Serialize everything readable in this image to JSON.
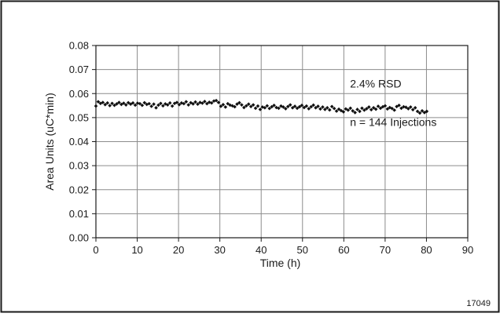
{
  "figure_id": "17049",
  "chart_data": {
    "type": "scatter",
    "title": "",
    "xlabel": "Time (h)",
    "ylabel": "Area Units (uC*min)",
    "xlim": [
      0,
      90
    ],
    "ylim": [
      0,
      0.08
    ],
    "xticks": [
      0,
      10,
      20,
      30,
      40,
      50,
      60,
      70,
      80,
      90
    ],
    "yticks": [
      0.0,
      0.01,
      0.02,
      0.03,
      0.04,
      0.05,
      0.06,
      0.07,
      0.08
    ],
    "xtick_labels": [
      "0",
      "10",
      "20",
      "30",
      "40",
      "50",
      "60",
      "70",
      "80",
      "90"
    ],
    "ytick_labels": [
      "0.00",
      "0.01",
      "0.02",
      "0.03",
      "0.04",
      "0.05",
      "0.06",
      "0.07",
      "0.08"
    ],
    "grid": true,
    "marker_color": "#111111",
    "annotations": [
      {
        "text": "2.4% RSD",
        "x": 61.5,
        "y": 0.0625
      },
      {
        "text": "n = 144 Injections",
        "x": 61.5,
        "y": 0.0465
      }
    ],
    "series": [
      {
        "x": [
          0.0,
          0.56,
          1.12,
          1.68,
          2.24,
          2.8,
          3.36,
          3.92,
          4.48,
          5.04,
          5.6,
          6.16,
          6.72,
          7.28,
          7.84,
          8.4,
          8.96,
          9.52,
          10.08,
          10.64,
          11.2,
          11.76,
          12.32,
          12.88,
          13.44,
          14.0,
          14.56,
          15.12,
          15.68,
          16.24,
          16.8,
          17.36,
          17.92,
          18.48,
          19.04,
          19.6,
          20.16,
          20.72,
          21.28,
          21.84,
          22.4,
          22.96,
          23.52,
          24.08,
          24.64,
          25.2,
          25.76,
          26.32,
          26.88,
          27.44,
          28.0,
          28.56,
          29.12,
          29.68,
          30.24,
          30.8,
          31.36,
          31.92,
          32.48,
          33.04,
          33.6,
          34.16,
          34.72,
          35.28,
          35.84,
          36.4,
          36.96,
          37.52,
          38.08,
          38.64,
          39.2,
          39.76,
          40.32,
          40.88,
          41.44,
          42.0,
          42.56,
          43.12,
          43.68,
          44.24,
          44.8,
          45.36,
          45.92,
          46.48,
          47.04,
          47.6,
          48.16,
          48.72,
          49.28,
          49.84,
          50.4,
          50.96,
          51.52,
          52.08,
          52.64,
          53.2,
          53.76,
          54.32,
          54.88,
          55.44,
          56.0,
          56.56,
          57.12,
          57.68,
          58.24,
          58.8,
          59.36,
          59.92,
          60.48,
          61.04,
          61.6,
          62.16,
          62.72,
          63.28,
          63.84,
          64.4,
          64.96,
          65.52,
          66.08,
          66.64,
          67.2,
          67.76,
          68.32,
          68.88,
          69.44,
          70.0,
          70.56,
          71.12,
          71.68,
          72.24,
          72.8,
          73.36,
          73.92,
          74.48,
          75.04,
          75.6,
          76.16,
          76.72,
          77.28,
          77.84,
          78.4,
          78.96,
          79.52,
          80.08
        ],
        "y": [
          0.0548,
          0.0566,
          0.0559,
          0.0563,
          0.0554,
          0.0561,
          0.055,
          0.0559,
          0.0551,
          0.0557,
          0.0563,
          0.0555,
          0.056,
          0.0553,
          0.0562,
          0.0556,
          0.0561,
          0.0552,
          0.056,
          0.0558,
          0.0551,
          0.0562,
          0.0555,
          0.0558,
          0.0547,
          0.0556,
          0.0541,
          0.0552,
          0.0559,
          0.0549,
          0.0557,
          0.0553,
          0.0561,
          0.0548,
          0.0559,
          0.0563,
          0.0554,
          0.0561,
          0.0558,
          0.0566,
          0.0553,
          0.0562,
          0.0557,
          0.0565,
          0.0556,
          0.0563,
          0.056,
          0.0567,
          0.0558,
          0.0564,
          0.0561,
          0.0569,
          0.0571,
          0.0563,
          0.0547,
          0.0554,
          0.0544,
          0.0558,
          0.0552,
          0.0549,
          0.0545,
          0.0556,
          0.0562,
          0.0553,
          0.0542,
          0.0549,
          0.0556,
          0.0546,
          0.0553,
          0.0539,
          0.0548,
          0.0534,
          0.0544,
          0.0541,
          0.0549,
          0.0538,
          0.0545,
          0.0551,
          0.0542,
          0.0539,
          0.0548,
          0.0544,
          0.0537,
          0.0546,
          0.0553,
          0.0541,
          0.0547,
          0.0539,
          0.0545,
          0.0551,
          0.0542,
          0.0548,
          0.0537,
          0.0545,
          0.0552,
          0.0541,
          0.0547,
          0.0536,
          0.0544,
          0.0534,
          0.0541,
          0.0532,
          0.0546,
          0.0538,
          0.0527,
          0.0535,
          0.0529,
          0.0524,
          0.0536,
          0.0531,
          0.0539,
          0.0528,
          0.0521,
          0.0534,
          0.0526,
          0.0539,
          0.0531,
          0.0537,
          0.0544,
          0.0533,
          0.0541,
          0.0535,
          0.0547,
          0.0539,
          0.0545,
          0.0549,
          0.0536,
          0.0542,
          0.0538,
          0.0531,
          0.0546,
          0.0551,
          0.0539,
          0.0545,
          0.0543,
          0.0537,
          0.0544,
          0.0533,
          0.0541,
          0.0526,
          0.0519,
          0.0528,
          0.0521,
          0.0526
        ]
      }
    ]
  }
}
